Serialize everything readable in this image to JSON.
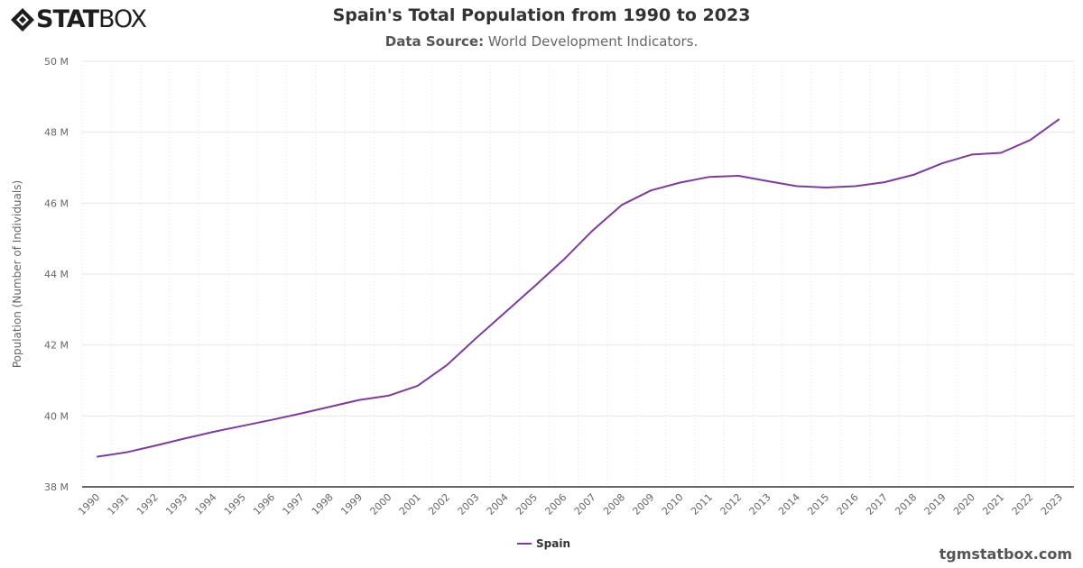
{
  "brand": {
    "logo_bold": "STAT",
    "logo_light": "BOX",
    "footer": "tgmstatbox.com"
  },
  "colors": {
    "series": "#7d3c98",
    "grid": "#e6e6e6",
    "axis": "#333333",
    "text": "#666666"
  },
  "chart_data": {
    "type": "line",
    "title": "Spain's Total Population from 1990 to 2023",
    "subtitle_label": "Data Source:",
    "subtitle_text": "World Development Indicators.",
    "xlabel": "",
    "ylabel": "Population (Number of Individuals)",
    "ylim": [
      38,
      50
    ],
    "yticks": [
      38,
      40,
      42,
      44,
      46,
      48,
      50
    ],
    "ytick_labels": [
      "38 M",
      "40 M",
      "42 M",
      "44 M",
      "46 M",
      "48 M",
      "50 M"
    ],
    "grid": true,
    "legend": "bottom-center",
    "categories": [
      "1990",
      "1991",
      "1992",
      "1993",
      "1994",
      "1995",
      "1996",
      "1997",
      "1998",
      "1999",
      "2000",
      "2001",
      "2002",
      "2003",
      "2004",
      "2005",
      "2006",
      "2007",
      "2008",
      "2009",
      "2010",
      "2011",
      "2012",
      "2013",
      "2014",
      "2015",
      "2016",
      "2017",
      "2018",
      "2019",
      "2020",
      "2021",
      "2022",
      "2023"
    ],
    "series": [
      {
        "name": "Spain",
        "values": [
          38.85,
          38.97,
          39.16,
          39.36,
          39.55,
          39.72,
          39.89,
          40.07,
          40.26,
          40.45,
          40.57,
          40.85,
          41.43,
          42.19,
          42.92,
          43.65,
          44.4,
          45.23,
          45.95,
          46.36,
          46.58,
          46.74,
          46.77,
          46.62,
          46.48,
          46.44,
          46.48,
          46.59,
          46.8,
          47.13,
          47.37,
          47.42,
          47.78,
          48.37
        ]
      }
    ]
  }
}
